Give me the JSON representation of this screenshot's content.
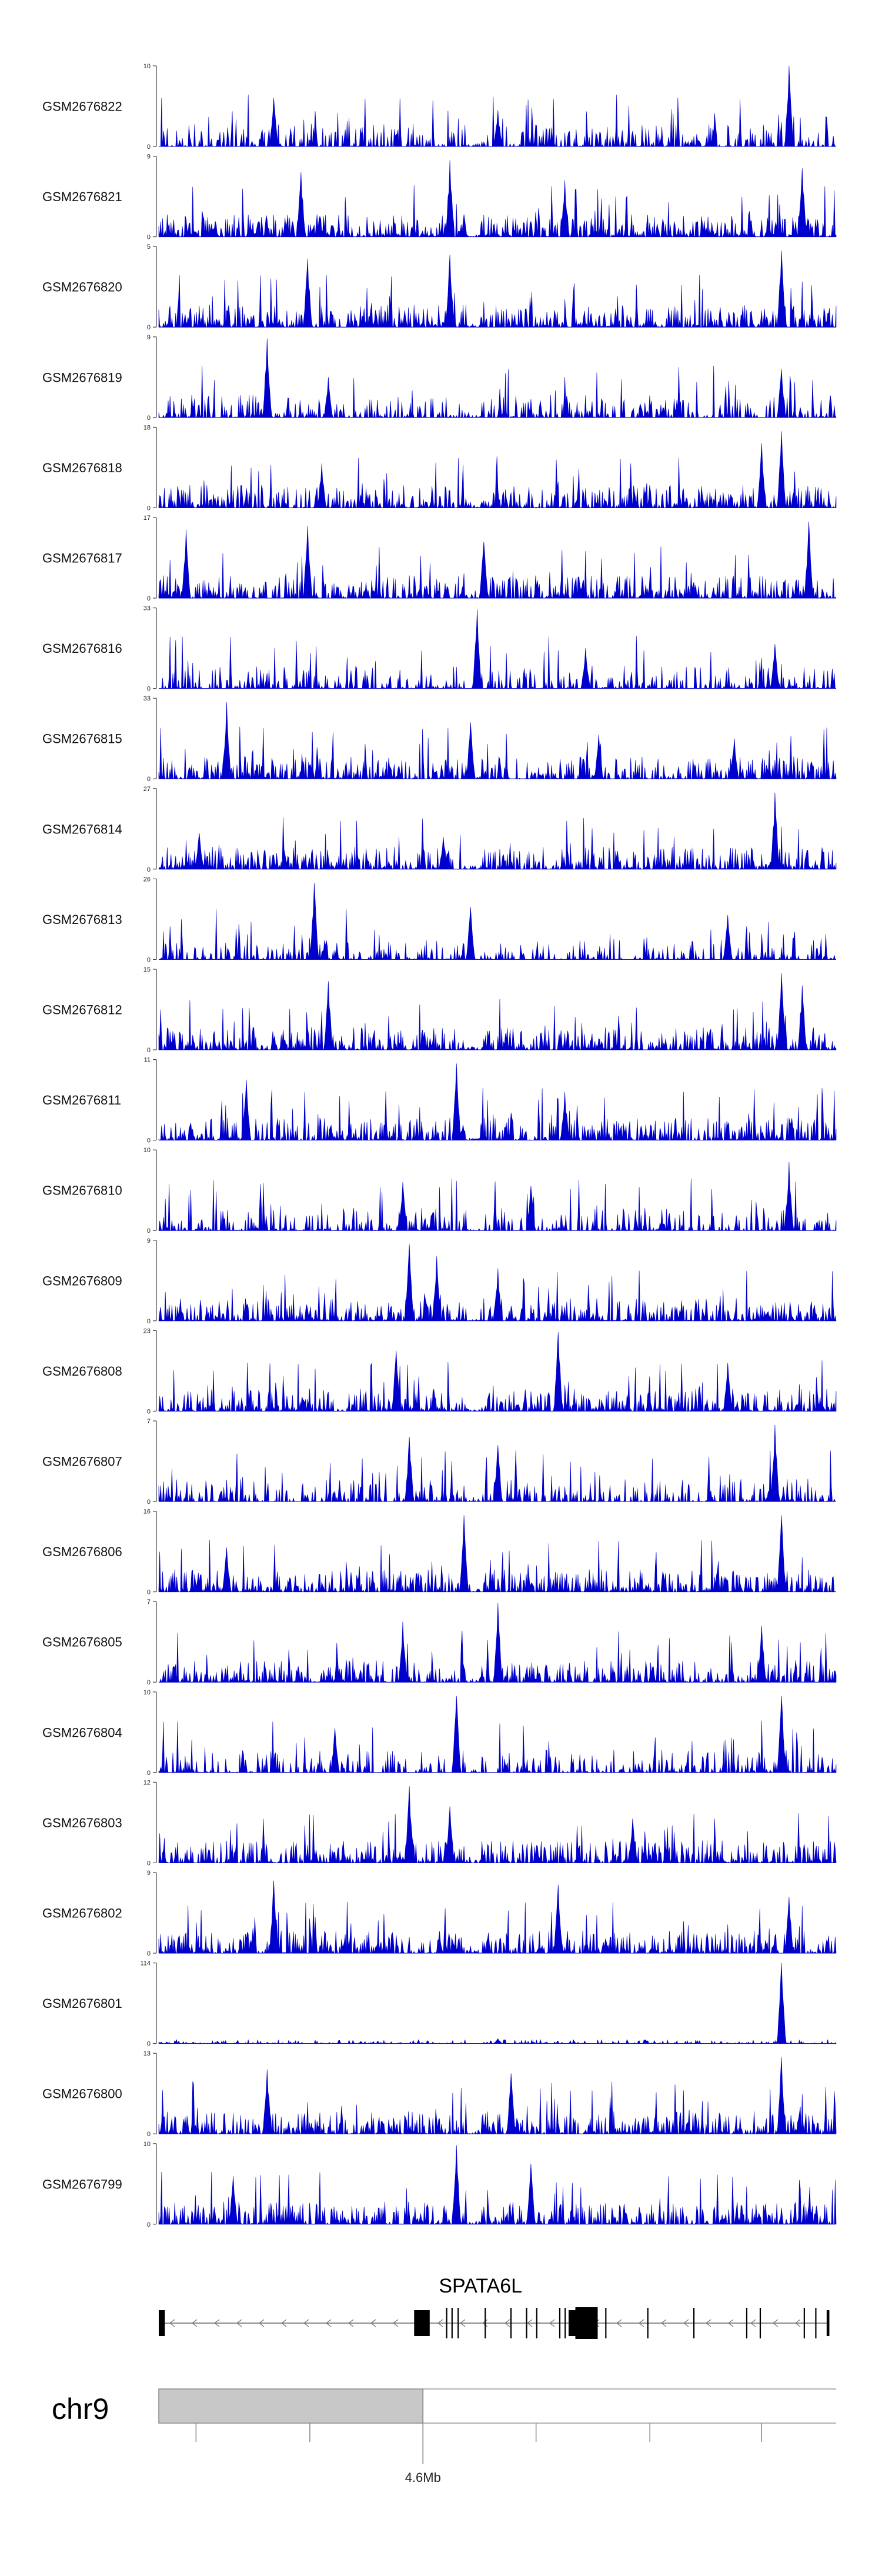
{
  "chart_data": {
    "type": "area",
    "y_axis_min_label": "0",
    "track_color": "#0000cc",
    "tracks": [
      {
        "name": "GSM2676822",
        "ymax": "10",
        "peaks": [
          [
            0.93,
            1.0
          ],
          [
            0.17,
            0.6
          ],
          [
            0.5,
            0.45
          ]
        ]
      },
      {
        "name": "GSM2676821",
        "ymax": "9",
        "peaks": [
          [
            0.43,
            0.95
          ],
          [
            0.21,
            0.8
          ],
          [
            0.6,
            0.7
          ],
          [
            0.95,
            0.85
          ]
        ]
      },
      {
        "name": "GSM2676820",
        "ymax": "5",
        "peaks": [
          [
            0.92,
            0.95
          ],
          [
            0.43,
            0.9
          ],
          [
            0.22,
            0.85
          ]
        ]
      },
      {
        "name": "GSM2676819",
        "ymax": "9",
        "peaks": [
          [
            0.16,
            0.98
          ],
          [
            0.92,
            0.6
          ],
          [
            0.25,
            0.5
          ]
        ]
      },
      {
        "name": "GSM2676818",
        "ymax": "18",
        "peaks": [
          [
            0.92,
            0.95
          ],
          [
            0.89,
            0.8
          ],
          [
            0.24,
            0.55
          ]
        ]
      },
      {
        "name": "GSM2676817",
        "ymax": "17",
        "peaks": [
          [
            0.04,
            0.85
          ],
          [
            0.22,
            0.9
          ],
          [
            0.96,
            0.95
          ],
          [
            0.48,
            0.7
          ]
        ]
      },
      {
        "name": "GSM2676816",
        "ymax": "33",
        "peaks": [
          [
            0.47,
            0.98
          ],
          [
            0.63,
            0.5
          ],
          [
            0.91,
            0.55
          ]
        ]
      },
      {
        "name": "GSM2676815",
        "ymax": "33",
        "peaks": [
          [
            0.1,
            0.95
          ],
          [
            0.46,
            0.7
          ],
          [
            0.65,
            0.55
          ],
          [
            0.85,
            0.5
          ]
        ]
      },
      {
        "name": "GSM2676814",
        "ymax": "27",
        "peaks": [
          [
            0.91,
            0.95
          ],
          [
            0.06,
            0.45
          ],
          [
            0.42,
            0.4
          ]
        ]
      },
      {
        "name": "GSM2676813",
        "ymax": "26",
        "peaks": [
          [
            0.23,
            0.95
          ],
          [
            0.46,
            0.65
          ],
          [
            0.84,
            0.55
          ]
        ]
      },
      {
        "name": "GSM2676812",
        "ymax": "15",
        "peaks": [
          [
            0.92,
            0.95
          ],
          [
            0.25,
            0.85
          ],
          [
            0.95,
            0.8
          ]
        ]
      },
      {
        "name": "GSM2676811",
        "ymax": "11",
        "peaks": [
          [
            0.44,
            0.95
          ],
          [
            0.13,
            0.75
          ],
          [
            0.6,
            0.6
          ]
        ]
      },
      {
        "name": "GSM2676810",
        "ymax": "10",
        "peaks": [
          [
            0.93,
            0.85
          ],
          [
            0.36,
            0.6
          ],
          [
            0.55,
            0.55
          ]
        ]
      },
      {
        "name": "GSM2676809",
        "ymax": "9",
        "peaks": [
          [
            0.37,
            0.95
          ],
          [
            0.41,
            0.8
          ],
          [
            0.5,
            0.65
          ]
        ]
      },
      {
        "name": "GSM2676808",
        "ymax": "23",
        "peaks": [
          [
            0.59,
            0.98
          ],
          [
            0.35,
            0.75
          ],
          [
            0.84,
            0.6
          ]
        ]
      },
      {
        "name": "GSM2676807",
        "ymax": "7",
        "peaks": [
          [
            0.91,
            0.95
          ],
          [
            0.37,
            0.8
          ],
          [
            0.5,
            0.7
          ]
        ]
      },
      {
        "name": "GSM2676806",
        "ymax": "16",
        "peaks": [
          [
            0.92,
            0.95
          ],
          [
            0.45,
            0.95
          ],
          [
            0.1,
            0.55
          ]
        ]
      },
      {
        "name": "GSM2676805",
        "ymax": "7",
        "peaks": [
          [
            0.5,
            0.98
          ],
          [
            0.36,
            0.75
          ],
          [
            0.89,
            0.7
          ]
        ]
      },
      {
        "name": "GSM2676804",
        "ymax": "10",
        "peaks": [
          [
            0.44,
            0.95
          ],
          [
            0.92,
            0.95
          ],
          [
            0.26,
            0.55
          ]
        ]
      },
      {
        "name": "GSM2676803",
        "ymax": "12",
        "peaks": [
          [
            0.37,
            0.95
          ],
          [
            0.43,
            0.7
          ],
          [
            0.7,
            0.55
          ]
        ]
      },
      {
        "name": "GSM2676802",
        "ymax": "9",
        "peaks": [
          [
            0.17,
            0.9
          ],
          [
            0.59,
            0.85
          ],
          [
            0.93,
            0.7
          ]
        ]
      },
      {
        "name": "GSM2676801",
        "ymax": "114",
        "peaks": [
          [
            0.92,
            1.0
          ],
          [
            0.5,
            0.06
          ]
        ]
      },
      {
        "name": "GSM2676800",
        "ymax": "13",
        "peaks": [
          [
            0.92,
            0.95
          ],
          [
            0.16,
            0.8
          ],
          [
            0.52,
            0.75
          ]
        ]
      },
      {
        "name": "GSM2676799",
        "ymax": "10",
        "peaks": [
          [
            0.44,
            0.98
          ],
          [
            0.55,
            0.75
          ],
          [
            0.11,
            0.6
          ]
        ]
      }
    ],
    "gene": {
      "name": "SPATA6L",
      "strand": "-",
      "blocks": [
        [
          0.0,
          0.009,
          44
        ],
        [
          0.377,
          0.4,
          44
        ],
        [
          0.605,
          0.616,
          44
        ],
        [
          0.606,
          0.641,
          38
        ],
        [
          0.615,
          0.648,
          54
        ],
        [
          0.986,
          0.99,
          44
        ]
      ],
      "lines": [
        0.425,
        0.433,
        0.442,
        0.482,
        0.52,
        0.543,
        0.558,
        0.592,
        0.6,
        0.66,
        0.722,
        0.79,
        0.868,
        0.888,
        0.953,
        0.97
      ]
    },
    "ideogram": {
      "chromosome": "chr9",
      "tick_label": "4.6Mb",
      "tick_label_position": 0.39,
      "highlight_end": 0.39,
      "minor_ticks": [
        0.055,
        0.223,
        0.557,
        0.725,
        0.89
      ]
    }
  }
}
